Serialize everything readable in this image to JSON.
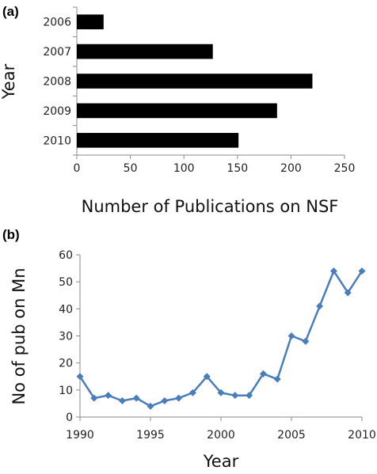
{
  "chart_data": [
    {
      "panel_label": "(a)",
      "type": "bar",
      "orientation": "horizontal",
      "categories": [
        "2006",
        "2007",
        "2008",
        "2009",
        "2010"
      ],
      "values": [
        25,
        127,
        220,
        187,
        151
      ],
      "xlabel": "Number of Publications on NSF",
      "ylabel": "Year",
      "xlim": [
        0,
        250
      ],
      "xticks": [
        "0",
        "50",
        "100",
        "150",
        "200",
        "250"
      ],
      "bar_color": "#000000",
      "grid": false
    },
    {
      "panel_label": "(b)",
      "type": "line",
      "x": [
        1990,
        1991,
        1992,
        1993,
        1994,
        1995,
        1996,
        1997,
        1998,
        1999,
        2000,
        2001,
        2002,
        2003,
        2004,
        2005,
        2006,
        2007,
        2008,
        2009,
        2010
      ],
      "values": [
        15,
        7,
        8,
        6,
        7,
        4,
        6,
        7,
        9,
        15,
        9,
        8,
        8,
        16,
        14,
        30,
        28,
        41,
        54,
        46,
        54
      ],
      "xlabel": "Year",
      "ylabel": "No of pub on Mn",
      "xlim": [
        1990,
        2010
      ],
      "ylim": [
        0,
        60
      ],
      "xticks": [
        "1990",
        "1995",
        "2000",
        "2005",
        "2010"
      ],
      "yticks": [
        "0",
        "10",
        "20",
        "30",
        "40",
        "50",
        "60"
      ],
      "marker": "diamond",
      "line_color": "#4a7ebb",
      "grid": false
    }
  ]
}
